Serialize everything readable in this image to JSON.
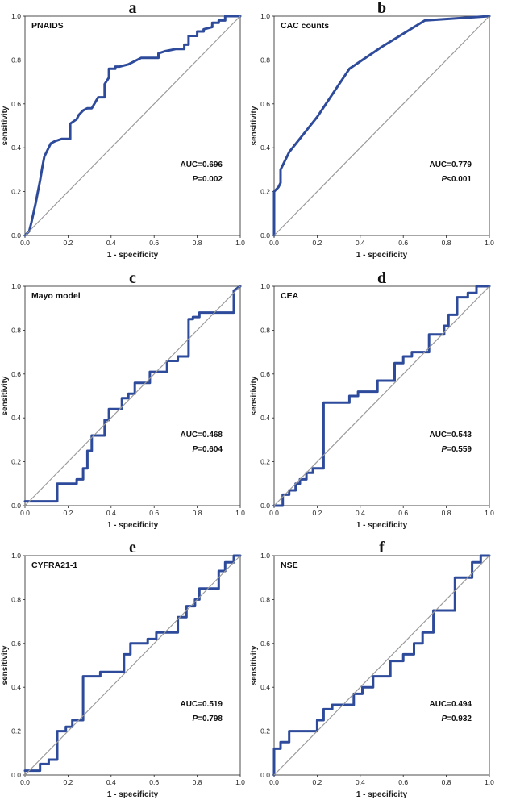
{
  "colors": {
    "roc": "#2E4B9B",
    "reference": "#9a9a9a",
    "axis": "#222222"
  },
  "chart_data": [
    {
      "id": "a",
      "type": "line",
      "panel_label": "a",
      "title": "PNAIDS",
      "xlabel": "1 - specificity",
      "ylabel": "sensitivity",
      "xlim": [
        0,
        1
      ],
      "ylim": [
        0,
        1
      ],
      "ticks": [
        "0.0",
        "0.2",
        "0.4",
        "0.6",
        "0.8",
        "1.0"
      ],
      "auc_text": "AUC=0.696",
      "p_label": "P",
      "p_value": "=0.002",
      "series": [
        {
          "name": "ROC",
          "x": [
            0,
            0.02,
            0.02,
            0.03,
            0.03,
            0.05,
            0.06,
            0.07,
            0.08,
            0.09,
            0.1,
            0.12,
            0.14,
            0.17,
            0.21,
            0.21,
            0.24,
            0.25,
            0.27,
            0.29,
            0.31,
            0.34,
            0.34,
            0.37,
            0.37,
            0.39,
            0.39,
            0.42,
            0.42,
            0.44,
            0.48,
            0.54,
            0.6,
            0.6,
            0.62,
            0.62,
            0.65,
            0.7,
            0.74,
            0.74,
            0.76,
            0.76,
            0.8,
            0.8,
            0.83,
            0.83,
            0.87,
            0.87,
            0.9,
            0.9,
            0.93,
            0.93,
            1.0
          ],
          "y": [
            0,
            0.02,
            0.02,
            0.06,
            0.06,
            0.15,
            0.2,
            0.25,
            0.31,
            0.36,
            0.38,
            0.42,
            0.43,
            0.44,
            0.44,
            0.51,
            0.53,
            0.55,
            0.57,
            0.58,
            0.58,
            0.63,
            0.63,
            0.63,
            0.69,
            0.72,
            0.76,
            0.76,
            0.77,
            0.77,
            0.78,
            0.81,
            0.81,
            0.81,
            0.81,
            0.83,
            0.84,
            0.85,
            0.85,
            0.87,
            0.87,
            0.91,
            0.91,
            0.93,
            0.93,
            0.94,
            0.95,
            0.97,
            0.97,
            0.98,
            0.98,
            1.0,
            1.0
          ]
        },
        {
          "name": "Reference",
          "x": [
            0,
            1
          ],
          "y": [
            0,
            1
          ]
        }
      ]
    },
    {
      "id": "b",
      "type": "line",
      "panel_label": "b",
      "title": "CAC counts",
      "xlabel": "1 - specificity",
      "ylabel": "sensitivity",
      "xlim": [
        0,
        1
      ],
      "ylim": [
        0,
        1
      ],
      "ticks": [
        "0.0",
        "0.2",
        "0.4",
        "0.6",
        "0.8",
        "1.0"
      ],
      "auc_text": "AUC=0.779",
      "p_label": "P",
      "p_value": "<0.001",
      "series": [
        {
          "name": "ROC",
          "x": [
            0,
            0,
            0.02,
            0.03,
            0.03,
            0.07,
            0.2,
            0.35,
            0.5,
            0.7,
            1.0
          ],
          "y": [
            0,
            0.2,
            0.22,
            0.24,
            0.3,
            0.38,
            0.54,
            0.76,
            0.86,
            0.98,
            1.0
          ]
        },
        {
          "name": "Reference",
          "x": [
            0,
            1
          ],
          "y": [
            0,
            1
          ]
        }
      ]
    },
    {
      "id": "c",
      "type": "line",
      "panel_label": "c",
      "title": "Mayo model",
      "xlabel": "1 - specificity",
      "ylabel": "sensitivity",
      "xlim": [
        0,
        1
      ],
      "ylim": [
        0,
        1
      ],
      "ticks": [
        "0.0",
        "0.2",
        "0.4",
        "0.6",
        "0.8",
        "1.0"
      ],
      "auc_text": "AUC=0.468",
      "p_label": "P",
      "p_value": "=0.604",
      "series": [
        {
          "name": "ROC",
          "x": [
            0,
            0.15,
            0.15,
            0.24,
            0.24,
            0.27,
            0.27,
            0.29,
            0.29,
            0.31,
            0.31,
            0.33,
            0.33,
            0.37,
            0.37,
            0.39,
            0.39,
            0.42,
            0.42,
            0.45,
            0.45,
            0.48,
            0.48,
            0.51,
            0.51,
            0.54,
            0.54,
            0.58,
            0.58,
            0.61,
            0.61,
            0.66,
            0.66,
            0.71,
            0.71,
            0.76,
            0.76,
            0.78,
            0.78,
            0.81,
            0.81,
            0.85,
            0.85,
            0.97,
            0.97,
            1.0
          ],
          "y": [
            0.02,
            0.02,
            0.1,
            0.1,
            0.12,
            0.12,
            0.17,
            0.17,
            0.25,
            0.25,
            0.32,
            0.32,
            0.32,
            0.32,
            0.39,
            0.39,
            0.44,
            0.44,
            0.44,
            0.44,
            0.49,
            0.49,
            0.51,
            0.51,
            0.56,
            0.56,
            0.56,
            0.56,
            0.61,
            0.61,
            0.61,
            0.61,
            0.66,
            0.66,
            0.68,
            0.68,
            0.85,
            0.85,
            0.86,
            0.86,
            0.88,
            0.88,
            0.88,
            0.88,
            0.98,
            1.0
          ]
        },
        {
          "name": "Reference",
          "x": [
            0,
            1
          ],
          "y": [
            0,
            1
          ]
        }
      ]
    },
    {
      "id": "d",
      "type": "line",
      "panel_label": "d",
      "title": "CEA",
      "xlabel": "1 - specificity",
      "ylabel": "sensitivity",
      "xlim": [
        0,
        1
      ],
      "ylim": [
        0,
        1
      ],
      "ticks": [
        "0.0",
        "0.2",
        "0.4",
        "0.6",
        "0.8",
        "1.0"
      ],
      "auc_text": "AUC=0.543",
      "p_label": "P",
      "p_value": "=0.559",
      "series": [
        {
          "name": "ROC",
          "x": [
            0,
            0.04,
            0.04,
            0.07,
            0.07,
            0.1,
            0.1,
            0.12,
            0.12,
            0.15,
            0.15,
            0.18,
            0.18,
            0.21,
            0.21,
            0.23,
            0.23,
            0.35,
            0.35,
            0.39,
            0.39,
            0.48,
            0.48,
            0.56,
            0.56,
            0.6,
            0.6,
            0.64,
            0.64,
            0.72,
            0.72,
            0.79,
            0.79,
            0.81,
            0.81,
            0.85,
            0.85,
            0.9,
            0.9,
            0.94,
            0.94,
            0.98,
            0.98,
            1.0
          ],
          "y": [
            0,
            0,
            0.05,
            0.05,
            0.07,
            0.07,
            0.1,
            0.1,
            0.12,
            0.12,
            0.15,
            0.15,
            0.17,
            0.17,
            0.17,
            0.17,
            0.47,
            0.47,
            0.5,
            0.5,
            0.52,
            0.52,
            0.57,
            0.57,
            0.65,
            0.65,
            0.68,
            0.68,
            0.7,
            0.7,
            0.78,
            0.78,
            0.82,
            0.82,
            0.87,
            0.87,
            0.95,
            0.95,
            0.97,
            0.97,
            1.0,
            1.0,
            1.0,
            1.0
          ]
        },
        {
          "name": "Reference",
          "x": [
            0,
            1
          ],
          "y": [
            0,
            1
          ]
        }
      ]
    },
    {
      "id": "e",
      "type": "line",
      "panel_label": "e",
      "title": "CYFRA21-1",
      "xlabel": "1 - specificity",
      "ylabel": "sensitivity",
      "xlim": [
        0,
        1
      ],
      "ylim": [
        0,
        1
      ],
      "ticks": [
        "0.0",
        "0.2",
        "0.4",
        "0.6",
        "0.8",
        "1.0"
      ],
      "auc_text": "AUC=0.519",
      "p_label": "P",
      "p_value": "=0.798",
      "series": [
        {
          "name": "ROC",
          "x": [
            0,
            0.07,
            0.07,
            0.11,
            0.11,
            0.15,
            0.15,
            0.19,
            0.19,
            0.22,
            0.22,
            0.27,
            0.27,
            0.35,
            0.35,
            0.46,
            0.46,
            0.49,
            0.49,
            0.57,
            0.57,
            0.61,
            0.61,
            0.71,
            0.71,
            0.75,
            0.75,
            0.79,
            0.79,
            0.81,
            0.81,
            0.9,
            0.9,
            0.93,
            0.93,
            0.97,
            0.97,
            1.0
          ],
          "y": [
            0.02,
            0.02,
            0.05,
            0.05,
            0.07,
            0.07,
            0.2,
            0.2,
            0.22,
            0.22,
            0.25,
            0.25,
            0.45,
            0.45,
            0.47,
            0.47,
            0.55,
            0.55,
            0.6,
            0.6,
            0.62,
            0.62,
            0.65,
            0.65,
            0.72,
            0.72,
            0.77,
            0.77,
            0.8,
            0.8,
            0.85,
            0.85,
            0.93,
            0.93,
            0.97,
            0.97,
            1.0,
            1.0
          ]
        },
        {
          "name": "Reference",
          "x": [
            0,
            1
          ],
          "y": [
            0,
            1
          ]
        }
      ]
    },
    {
      "id": "f",
      "type": "line",
      "panel_label": "f",
      "title": "NSE",
      "xlabel": "1 - specificity",
      "ylabel": "sensitivity",
      "xlim": [
        0,
        1
      ],
      "ylim": [
        0,
        1
      ],
      "ticks": [
        "0.0",
        "0.2",
        "0.4",
        "0.6",
        "0.8",
        "1.0"
      ],
      "auc_text": "AUC=0.494",
      "p_label": "P",
      "p_value": "=0.932",
      "series": [
        {
          "name": "ROC",
          "x": [
            0,
            0,
            0.03,
            0.03,
            0.07,
            0.07,
            0.2,
            0.2,
            0.23,
            0.23,
            0.27,
            0.27,
            0.37,
            0.37,
            0.41,
            0.41,
            0.46,
            0.46,
            0.54,
            0.54,
            0.6,
            0.6,
            0.65,
            0.65,
            0.69,
            0.69,
            0.74,
            0.74,
            0.84,
            0.84,
            0.92,
            0.92,
            0.96,
            0.96,
            1.0
          ],
          "y": [
            0,
            0.12,
            0.12,
            0.15,
            0.15,
            0.2,
            0.2,
            0.25,
            0.25,
            0.3,
            0.3,
            0.32,
            0.32,
            0.37,
            0.37,
            0.4,
            0.4,
            0.45,
            0.45,
            0.52,
            0.52,
            0.55,
            0.55,
            0.6,
            0.6,
            0.65,
            0.65,
            0.75,
            0.75,
            0.9,
            0.9,
            0.97,
            0.97,
            1.0,
            1.0
          ]
        },
        {
          "name": "Reference",
          "x": [
            0,
            1
          ],
          "y": [
            0,
            1
          ]
        }
      ]
    }
  ]
}
